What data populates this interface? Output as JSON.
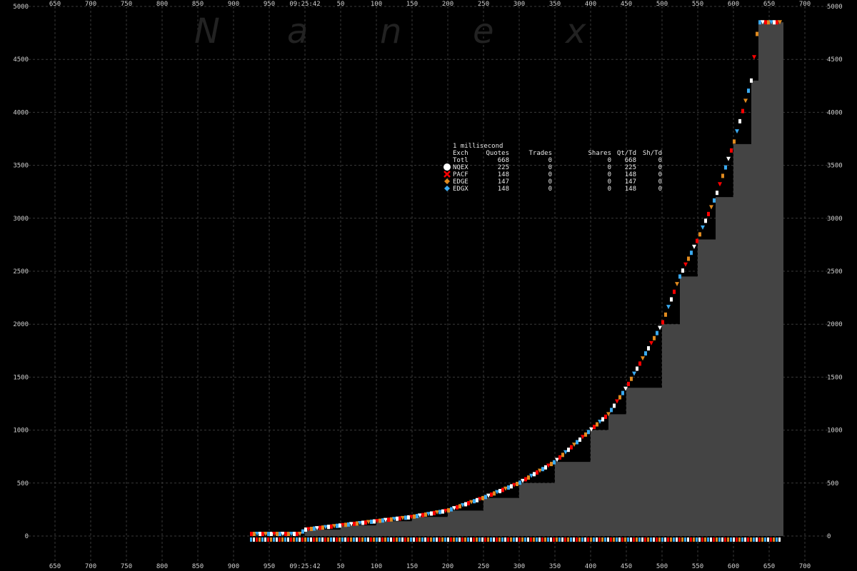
{
  "watermark": [
    "N",
    "a",
    "n",
    "e",
    "x"
  ],
  "chart_data": {
    "type": "area",
    "time_label": "09:25:42",
    "x_tick_labels": [
      "650",
      "700",
      "750",
      "800",
      "850",
      "900",
      "950",
      "09:25:42",
      "50",
      "100",
      "150",
      "200",
      "250",
      "300",
      "350",
      "400",
      "450",
      "500",
      "550",
      "600",
      "650",
      "700"
    ],
    "y_ticks": [
      0,
      500,
      1000,
      1500,
      2000,
      2500,
      3000,
      3500,
      4000,
      4500,
      5000
    ],
    "ylim": [
      0,
      5000
    ],
    "grid": true,
    "area_color": "#444444",
    "cumulative_quote_count": [
      {
        "x": -75,
        "y": 20
      },
      {
        "x": -7,
        "y": 20
      },
      {
        "x": 0,
        "y": 60
      },
      {
        "x": 50,
        "y": 100
      },
      {
        "x": 100,
        "y": 140
      },
      {
        "x": 150,
        "y": 180
      },
      {
        "x": 200,
        "y": 240
      },
      {
        "x": 250,
        "y": 360
      },
      {
        "x": 300,
        "y": 500
      },
      {
        "x": 350,
        "y": 700
      },
      {
        "x": 400,
        "y": 1000
      },
      {
        "x": 425,
        "y": 1150
      },
      {
        "x": 450,
        "y": 1400
      },
      {
        "x": 500,
        "y": 2000
      },
      {
        "x": 525,
        "y": 2450
      },
      {
        "x": 550,
        "y": 2800
      },
      {
        "x": 575,
        "y": 3200
      },
      {
        "x": 600,
        "y": 3700
      },
      {
        "x": 625,
        "y": 4300
      },
      {
        "x": 635,
        "y": 4850
      },
      {
        "x": 670,
        "y": 4850
      }
    ],
    "legend": {
      "interval": "1 millisecond",
      "headers": [
        "Exch",
        "Quotes",
        "Trades",
        "Shares",
        "Qt/Td",
        "Sh/Td"
      ],
      "rows": [
        {
          "exch": "Totl",
          "quotes": "668",
          "trades": "0",
          "shares": "0",
          "qt_td": "668",
          "sh_td": "0",
          "marker": "none",
          "color": "#ffffff"
        },
        {
          "exch": "NQEX",
          "quotes": "225",
          "trades": "0",
          "shares": "0",
          "qt_td": "225",
          "sh_td": "0",
          "marker": "circle",
          "color": "#ffffff"
        },
        {
          "exch": "PACF",
          "quotes": "148",
          "trades": "0",
          "shares": "0",
          "qt_td": "148",
          "sh_td": "0",
          "marker": "cross",
          "color": "#ff0000"
        },
        {
          "exch": "EDGE",
          "quotes": "147",
          "trades": "0",
          "shares": "0",
          "qt_td": "147",
          "sh_td": "0",
          "marker": "diamond",
          "color": "#e08a1e"
        },
        {
          "exch": "EDGX",
          "quotes": "148",
          "trades": "0",
          "shares": "0",
          "qt_td": "148",
          "sh_td": "0",
          "marker": "diamond",
          "color": "#3aaaf0"
        }
      ]
    },
    "marker_colors": [
      "#ff0000",
      "#e08a1e",
      "#3aaaf0",
      "#ffffff"
    ]
  }
}
